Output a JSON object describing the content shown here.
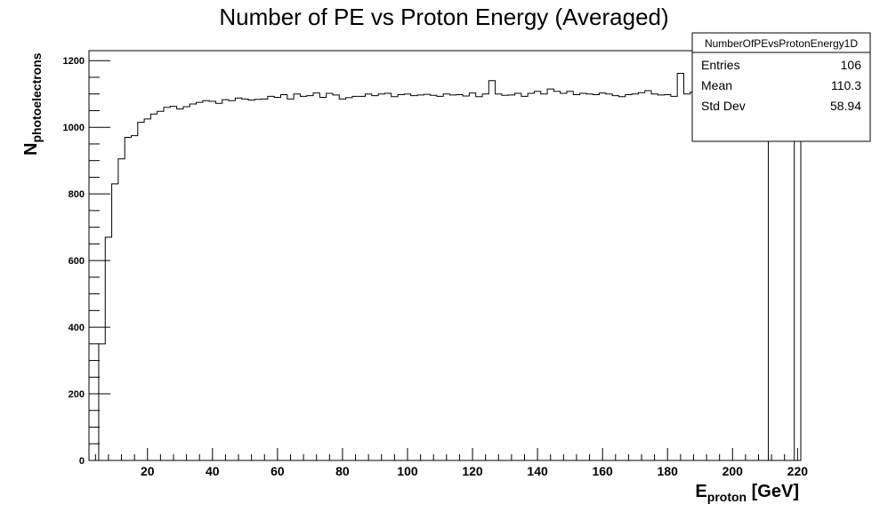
{
  "chart_data": {
    "type": "histogram",
    "title": "Number of PE vs Proton Energy (Averaged)",
    "xlabel": {
      "main": "E",
      "sub": "proton",
      "suffix": " [GeV]"
    },
    "ylabel": {
      "main": "N",
      "sub": "photoelectrons"
    },
    "xlim": [
      2,
      221
    ],
    "ylim": [
      0,
      1230
    ],
    "x_ticks": [
      20,
      40,
      60,
      80,
      100,
      120,
      140,
      160,
      180,
      200,
      220
    ],
    "y_ticks": [
      0,
      200,
      400,
      600,
      800,
      1000,
      1200
    ],
    "bin_width": 2,
    "bins_start": 5,
    "values": [
      350,
      670,
      830,
      905,
      970,
      975,
      1015,
      1025,
      1040,
      1048,
      1060,
      1063,
      1055,
      1062,
      1070,
      1075,
      1080,
      1078,
      1072,
      1083,
      1080,
      1088,
      1085,
      1082,
      1084,
      1085,
      1093,
      1090,
      1098,
      1085,
      1100,
      1093,
      1095,
      1103,
      1090,
      1102,
      1097,
      1085,
      1089,
      1093,
      1093,
      1100,
      1095,
      1100,
      1102,
      1092,
      1098,
      1100,
      1095,
      1097,
      1099,
      1096,
      1093,
      1100,
      1097,
      1098,
      1094,
      1103,
      1092,
      1100,
      1140,
      1100,
      1096,
      1097,
      1102,
      1093,
      1102,
      1108,
      1100,
      1115,
      1108,
      1102,
      1108,
      1098,
      1102,
      1100,
      1098,
      1103,
      1100,
      1095,
      1092,
      1098,
      1100,
      1104,
      1110,
      1100,
      1097,
      1098,
      1093,
      1162,
      1100,
      1106,
      1105,
      1110,
      1100,
      1106,
      1109,
      1100,
      1102,
      1098,
      1100,
      1100,
      1098
    ],
    "tail": {
      "x0": 211,
      "x1": 213,
      "value": 0,
      "final_x": 219,
      "final_value": 1100
    },
    "stats_box": {
      "name": "NumberOfPEvsProtonEnergy1D",
      "rows": [
        {
          "label": "Entries",
          "value": "106"
        },
        {
          "label": "Mean",
          "value": "110.3"
        },
        {
          "label": "Std Dev",
          "value": "58.94"
        }
      ]
    },
    "colors": {
      "line": "#000000",
      "background": "#ffffff"
    }
  }
}
